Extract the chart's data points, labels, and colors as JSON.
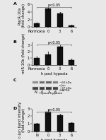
{
  "panel_A": {
    "categories": [
      "Normoxia",
      "0",
      "3",
      "6"
    ],
    "values": [
      1.0,
      4.8,
      3.6,
      0.5
    ],
    "errors": [
      0.15,
      0.45,
      0.35,
      0.12
    ],
    "ylabel": "PlacR-10a\n(fold change)",
    "ylim": [
      0,
      6.0
    ],
    "yticks": [
      0,
      2,
      4,
      6
    ],
    "pval_text": "p<0.05",
    "bar_color": "#111111",
    "label": "A"
  },
  "panel_B": {
    "categories": [
      "Normoxia",
      "0",
      "3",
      "6"
    ],
    "values": [
      1.0,
      1.6,
      2.8,
      0.75
    ],
    "errors": [
      0.2,
      0.35,
      0.25,
      0.15
    ],
    "ylabel": "miR-10b (fold change)",
    "ylim": [
      0,
      3.5
    ],
    "yticks": [
      0,
      1,
      2,
      3
    ],
    "pval_text": "p<0.05",
    "xlabel": "h post hypoxia",
    "bar_color": "#111111",
    "label": "B"
  },
  "panel_C": {
    "lane_labels": [
      "N",
      "0",
      "3",
      "6"
    ],
    "band1_label": "c-Jun",
    "band2_label": "-GAPDH",
    "kda1": "~60 kDa",
    "kda3": "~37 kDa",
    "xlabel": "h post hypoxia",
    "label": "C"
  },
  "panel_D": {
    "categories": [
      "N",
      "0",
      "3",
      "6"
    ],
    "values": [
      1.0,
      2.6,
      2.1,
      1.1
    ],
    "errors": [
      0.15,
      0.28,
      0.22,
      0.15
    ],
    "ylabel": "c-Jun band intensity\n(fold change)",
    "ylim": [
      0,
      3.0
    ],
    "yticks": [
      0,
      1,
      2,
      3
    ],
    "pval_text": "p<0.05",
    "xlabel": "h post hypoxia",
    "bar_color": "#111111",
    "label": "D"
  },
  "figure_bg": "#e8e8e8",
  "font_size": 4.0,
  "bar_width": 0.5
}
